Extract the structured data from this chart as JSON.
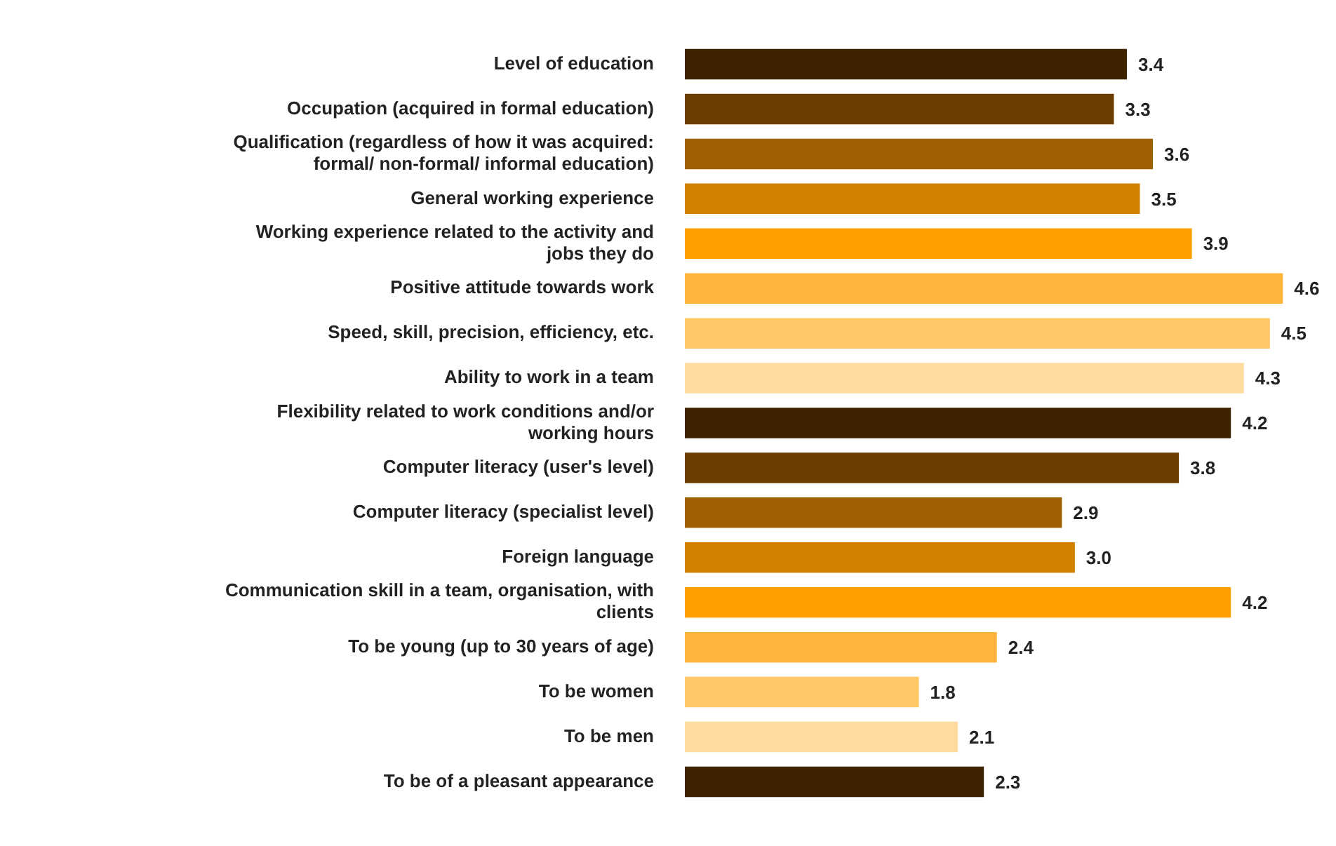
{
  "chart_data": {
    "type": "bar",
    "orientation": "horizontal",
    "categories": [
      "Level of education",
      "Occupation (acquired in formal education)",
      "Qualification (regardless of how it was acquired: formal/ non-formal/ informal education)",
      "General working experience",
      "Working experience related to the activity and jobs they do",
      "Positive attitude towards work",
      "Speed, skill, precision, efficiency, etc.",
      "Ability to work in a team",
      "Flexibility related to work conditions and/or working hours",
      "Computer literacy (user's level)",
      "Computer literacy (specialist level)",
      "Foreign language",
      "Communication skill in a team, organisation, with clients",
      "To be young (up to 30 years of age)",
      "To be women",
      "To be men",
      "To be of a pleasant appearance"
    ],
    "values": [
      3.4,
      3.3,
      3.6,
      3.5,
      3.9,
      4.6,
      4.5,
      4.3,
      4.2,
      3.8,
      2.9,
      3.0,
      4.2,
      2.4,
      1.8,
      2.1,
      2.3
    ],
    "value_labels": [
      "3.4",
      "3.3",
      "3.6",
      "3.5",
      "3.9",
      "4.6",
      "4.5",
      "4.3",
      "4.2",
      "3.8",
      "2.9",
      "3.0",
      "4.2",
      "2.4",
      "1.8",
      "2.1",
      "2.3"
    ],
    "colors": [
      "#3d2300",
      "#6b3d00",
      "#a05f00",
      "#d18000",
      "#ff9e00",
      "#ffb43c",
      "#ffc766",
      "#ffdba0",
      "#3d2300",
      "#6b3d00",
      "#a05f00",
      "#d18000",
      "#ff9e00",
      "#ffb43c",
      "#ffc766",
      "#ffdba0",
      "#3d2300"
    ],
    "legend": false
  }
}
